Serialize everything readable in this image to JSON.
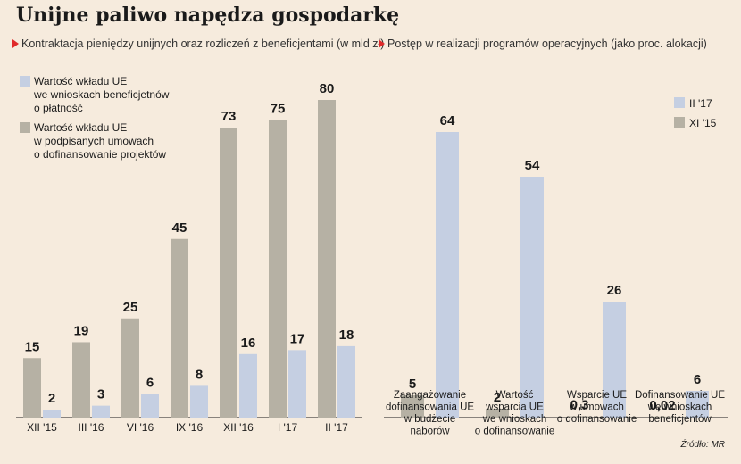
{
  "title": "Unijne paliwo napędza gospodarkę",
  "subtitles": [
    "Kontraktacja pieniędzy unijnych oraz rozliczeń z beneficjentami (w mld zł)",
    "Postęp w realizacji programów operacyjnych (jako proc. alokacji)"
  ],
  "source": "Źródło: MR",
  "colors": {
    "grey": "#b6b1a4",
    "blue": "#c5cfe2",
    "accent": "#e02a2a",
    "background": "#f6ebdd"
  },
  "chart_data": [
    {
      "type": "bar",
      "title": "Kontraktacja pieniędzy unijnych oraz rozliczeń z beneficjentami (w mld zł)",
      "categories": [
        "XII '15",
        "III '16",
        "VI '16",
        "IX '16",
        "XII '16",
        "I '17",
        "II '17"
      ],
      "series": [
        {
          "name": "Wartość wkładu UE w podpisanych umowach o dofinansowanie projektów",
          "legend_lines": [
            "Wartość wkładu UE",
            "w podpisanych umowach",
            "o dofinansowanie projektów"
          ],
          "color": "#b6b1a4",
          "values": [
            15,
            19,
            25,
            45,
            73,
            75,
            80
          ],
          "labels": [
            "15",
            "19",
            "25",
            "45",
            "73",
            "75",
            "80"
          ]
        },
        {
          "name": "Wartość wkładu UE we wnioskach beneficjetnów o płatność",
          "legend_lines": [
            "Wartość wkładu UE",
            "we wnioskach beneficjetnów",
            "o płatność"
          ],
          "color": "#c5cfe2",
          "values": [
            2,
            3,
            6,
            8,
            16,
            17,
            18
          ],
          "labels": [
            "2",
            "3",
            "6",
            "8",
            "16",
            "17",
            "18"
          ]
        }
      ],
      "legend_position": "top-left",
      "ylim": [
        0,
        80
      ]
    },
    {
      "type": "bar",
      "title": "Postęp w realizacji programów operacyjnych (jako proc. alokacji)",
      "categories": [
        [
          "Zaangażowanie",
          "dofinansowania UE",
          "w budżecie",
          "naborów"
        ],
        [
          "Wartość",
          "wsparcia UE",
          "we wnioskach",
          "o dofinansowanie"
        ],
        [
          "Wsparcie UE",
          "w umowach",
          "o dofinansowanie"
        ],
        [
          "Dofinansowanie UE",
          "we wnioskach",
          "beneficjentów"
        ]
      ],
      "series": [
        {
          "name": "XI '15",
          "color": "#b6b1a4",
          "values": [
            5,
            2,
            0.3,
            0.02
          ],
          "labels": [
            "5",
            "2",
            "0,3",
            "0,02"
          ]
        },
        {
          "name": "II '17",
          "color": "#c5cfe2",
          "values": [
            64,
            54,
            26,
            6
          ],
          "labels": [
            "64",
            "54",
            "26",
            "6"
          ]
        }
      ],
      "legend_order": [
        "II '17",
        "XI '15"
      ],
      "legend_position": "top-right",
      "ylim": [
        0,
        64
      ]
    }
  ]
}
